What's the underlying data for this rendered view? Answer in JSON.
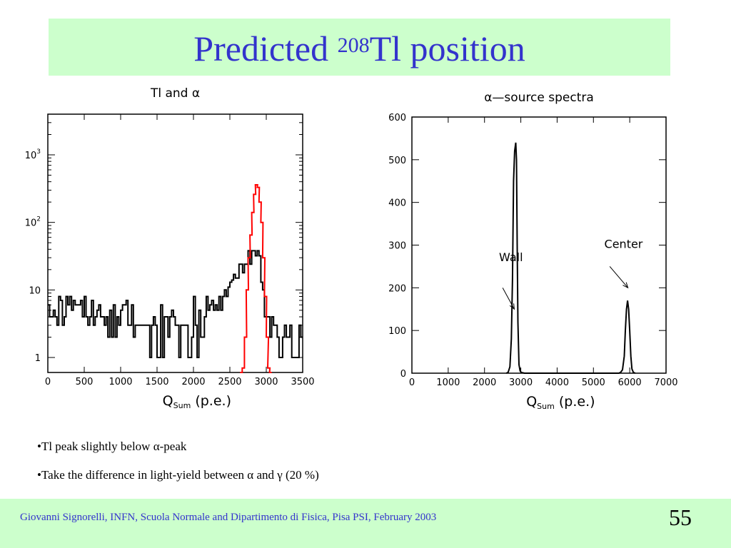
{
  "slide": {
    "title_prefix": "Predicted ",
    "title_superscript": "208",
    "title_suffix": "Tl position",
    "bullets": [
      {
        "pre": "•Tl peak slightly below ",
        "sym1": "α",
        "mid": "-peak",
        "sym2": "",
        "post": ""
      },
      {
        "pre": "•Take the difference in light-yield between ",
        "sym1": "α",
        "mid": " and ",
        "sym2": "γ",
        "post": "  (20 %)"
      }
    ],
    "footer": "Giovanni Signorelli, INFN, Scuola Normale and  Dipartimento di Fisica, Pisa    PSI, February 2003",
    "page_number": "55",
    "colors": {
      "title": "#3333cc",
      "band": "#ccffcc",
      "alpha_hist": "#ff0000",
      "tl_hist": "#000000"
    }
  },
  "chart_data": [
    {
      "type": "line",
      "title": "Tl and α",
      "xlabel_main": "Q",
      "xlabel_sub": "Sum",
      "xlabel_unit": " (p.e.)",
      "ylabel": "",
      "xlim": [
        0,
        3500
      ],
      "ylim": [
        0.6,
        4000
      ],
      "yscale": "log",
      "xticks": [
        0,
        500,
        1000,
        1500,
        2000,
        2500,
        3000,
        3500
      ],
      "xtick_labels": [
        "0",
        "500",
        "1000",
        "1500",
        "2000",
        "2500",
        "3000",
        "3500"
      ],
      "ytick_labels": [
        {
          "value": 1,
          "base": "1",
          "exp": ""
        },
        {
          "value": 10,
          "base": "10",
          "exp": ""
        },
        {
          "value": 100,
          "base": "10",
          "exp": "2"
        },
        {
          "value": 1000,
          "base": "10",
          "exp": "3"
        }
      ],
      "series": [
        {
          "color": "#000000",
          "x": [
            0,
            25,
            50,
            75,
            100,
            125,
            150,
            175,
            200,
            225,
            250,
            275,
            300,
            325,
            350,
            375,
            400,
            425,
            450,
            475,
            500,
            525,
            550,
            575,
            600,
            625,
            650,
            675,
            700,
            725,
            750,
            775,
            800,
            825,
            850,
            875,
            900,
            925,
            950,
            975,
            1000,
            1025,
            1050,
            1075,
            1100,
            1125,
            1150,
            1175,
            1200,
            1225,
            1250,
            1275,
            1300,
            1325,
            1350,
            1375,
            1400,
            1425,
            1450,
            1475,
            1500,
            1525,
            1550,
            1575,
            1600,
            1625,
            1650,
            1675,
            1700,
            1725,
            1750,
            1775,
            1800,
            1825,
            1850,
            1875,
            1900,
            1925,
            1950,
            1975,
            2000,
            2025,
            2050,
            2075,
            2100,
            2125,
            2150,
            2175,
            2200,
            2225,
            2250,
            2275,
            2300,
            2325,
            2350,
            2375,
            2400,
            2425,
            2450,
            2475,
            2500,
            2525,
            2550,
            2575,
            2600,
            2625,
            2650,
            2675,
            2700,
            2725,
            2750,
            2775,
            2800,
            2825,
            2850,
            2875,
            2900,
            2925,
            2950,
            2975,
            3000,
            3025,
            3050,
            3075,
            3100,
            3125,
            3150,
            3175,
            3200,
            3225,
            3250,
            3275,
            3300,
            3325,
            3350,
            3375,
            3400,
            3425,
            3450,
            3475
          ],
          "values": [
            6,
            4,
            4,
            5,
            4,
            3,
            8,
            7,
            3,
            4,
            8,
            6,
            8,
            5,
            7,
            6,
            6,
            6,
            7,
            4,
            8,
            4,
            3,
            4,
            7,
            3,
            4,
            5,
            6,
            4,
            4,
            3,
            4,
            2,
            5,
            2,
            6,
            2,
            4,
            3,
            5,
            6,
            6,
            7,
            3,
            3,
            6,
            2,
            3,
            3,
            3,
            3,
            3,
            3,
            3,
            3,
            1,
            3,
            4,
            3,
            1,
            1,
            6,
            1,
            4,
            4,
            2,
            4,
            5,
            4,
            3,
            3,
            1,
            3,
            3,
            3,
            3,
            1,
            1,
            2,
            8,
            3,
            1,
            5,
            2,
            2,
            4,
            8,
            5,
            6,
            7,
            5,
            6,
            5,
            8,
            5,
            8,
            10,
            8,
            11,
            13,
            14,
            17,
            15,
            15,
            24,
            24,
            18,
            24,
            24,
            38,
            24,
            38,
            38,
            32,
            38,
            32,
            13,
            10,
            4,
            4,
            4,
            2,
            4,
            3,
            3,
            2,
            1,
            1,
            2,
            3,
            2,
            2,
            3,
            1,
            1,
            1,
            1,
            3,
            2
          ]
        },
        {
          "color": "#ff0000",
          "x": [
            2640,
            2670,
            2700,
            2725,
            2750,
            2775,
            2800,
            2825,
            2850,
            2875,
            2900,
            2925,
            2950,
            2975,
            3000,
            3020,
            3045
          ],
          "values": [
            0.6,
            0.7,
            2,
            10,
            30,
            65,
            140,
            260,
            360,
            330,
            200,
            100,
            30,
            8,
            2,
            0.7,
            0.6
          ]
        }
      ]
    },
    {
      "type": "line",
      "title": "α—source spectra",
      "xlabel_main": "Q",
      "xlabel_sub": "Sum",
      "xlabel_unit": " (p.e.)",
      "ylabel": "",
      "xlim": [
        0,
        7000
      ],
      "ylim": [
        0,
        600
      ],
      "xticks": [
        0,
        1000,
        2000,
        3000,
        4000,
        5000,
        6000,
        7000
      ],
      "xtick_labels": [
        "0",
        "1000",
        "2000",
        "3000",
        "4000",
        "5000",
        "6000",
        "7000"
      ],
      "yticks": [
        0,
        100,
        200,
        300,
        400,
        500,
        600
      ],
      "ytick_labels": [
        "0",
        "100",
        "200",
        "300",
        "400",
        "500",
        "600"
      ],
      "annotations": [
        {
          "text": "Wall",
          "x": 2400,
          "y": 262,
          "arrow_from": [
            2500,
            200
          ],
          "arrow_to": [
            2820,
            150
          ]
        },
        {
          "text": "Center",
          "x": 5300,
          "y": 293,
          "arrow_from": [
            5450,
            250
          ],
          "arrow_to": [
            5950,
            200
          ]
        }
      ],
      "series": [
        {
          "color": "#000000",
          "x": [
            2600,
            2650,
            2700,
            2740,
            2770,
            2800,
            2830,
            2860,
            2880,
            2900,
            2920,
            2950,
            2980,
            3010,
            3050,
            3100,
            3150,
            5700,
            5750,
            5800,
            5850,
            5880,
            5910,
            5940,
            5970,
            6000,
            6030,
            6060,
            6100,
            6150
          ],
          "values": [
            0,
            2,
            15,
            80,
            220,
            450,
            520,
            540,
            500,
            300,
            120,
            20,
            5,
            2,
            1,
            0,
            0,
            0,
            2,
            8,
            40,
            100,
            150,
            170,
            150,
            100,
            40,
            10,
            2,
            0
          ]
        }
      ]
    }
  ]
}
